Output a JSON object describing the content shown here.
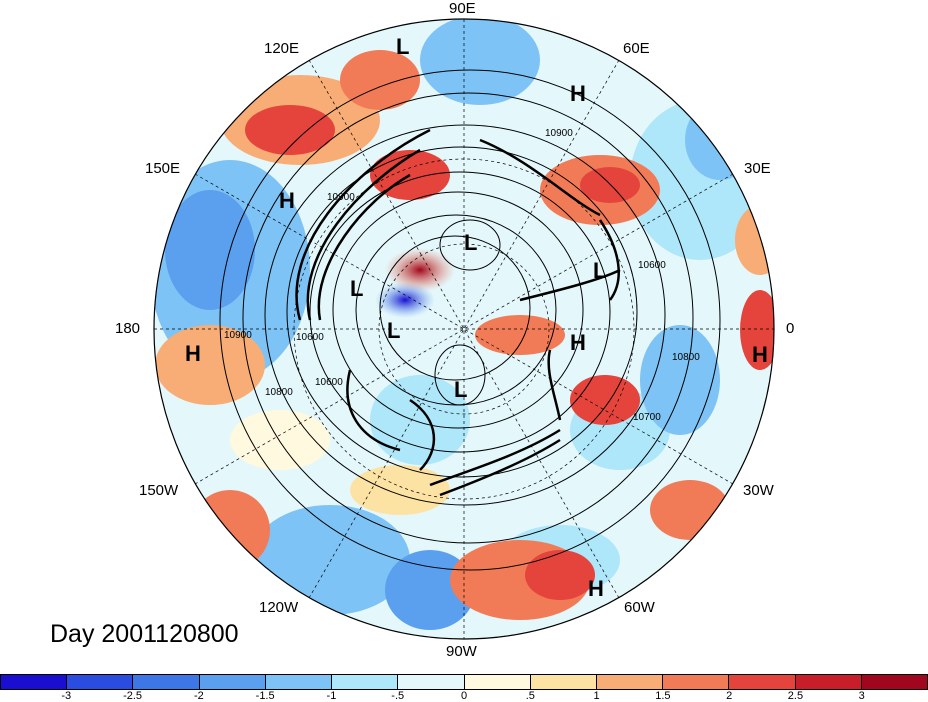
{
  "title": "Day 2001120800",
  "longitude_labels": {
    "top": "90E",
    "upper_left": "120E",
    "upper_right": "60E",
    "left_upper": "150E",
    "right_upper": "30E",
    "left": "180",
    "right": "0",
    "left_lower": "150W",
    "right_lower": "30W",
    "lower_left": "120W",
    "lower_right": "60W",
    "bottom": "90W"
  },
  "pressure_centers": [
    "L",
    "H",
    "H",
    "L",
    "L",
    "L",
    "L",
    "H",
    "H",
    "L",
    "H",
    "H"
  ],
  "contour_labels": [
    "10900",
    "10900",
    "10600",
    "10900",
    "10800",
    "10600",
    "10700",
    "10800",
    "10600"
  ],
  "colorbar": {
    "colors": [
      "#1a0fd0",
      "#2b4ddf",
      "#3d77e6",
      "#5aa0ef",
      "#7ec3f5",
      "#aee6fa",
      "#e4f7fb",
      "#fffadf",
      "#fde3a3",
      "#f7ad75",
      "#f27b57",
      "#e4443b",
      "#c81e2a",
      "#a0061d"
    ],
    "ticks": [
      "-3",
      "-2.5",
      "-2",
      "-1.5",
      "-1",
      "-.5",
      "0",
      ".5",
      "1",
      "1.5",
      "2",
      "2.5",
      "3"
    ]
  },
  "contour_colors": {
    "line": "#000000",
    "jet": "#000000"
  }
}
